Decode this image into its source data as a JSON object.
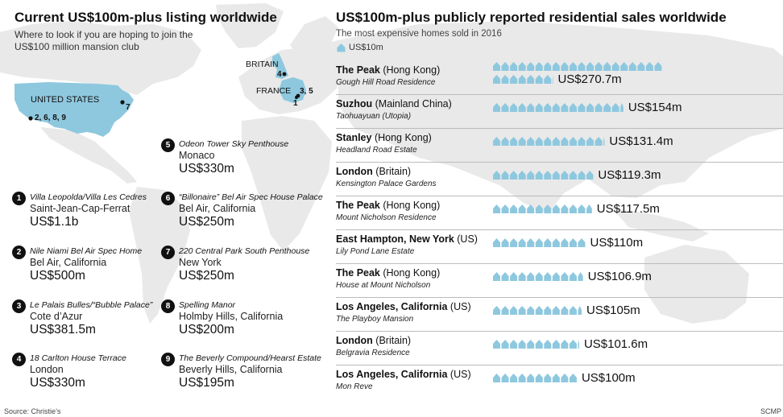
{
  "left": {
    "title": "Current US$100m-plus listing worldwide",
    "subtitle_line1": "Where to look if you are hoping to join the",
    "subtitle_line2": "US$100 million mansion club",
    "map": {
      "labels": {
        "us": "UNITED STATES",
        "britain": "BRITAIN",
        "france": "FRANCE"
      },
      "markers": {
        "la": "2, 6, 8, 9",
        "ny": "7",
        "london": "4",
        "monaco": "3, 5",
        "capferrat": "1"
      }
    },
    "listings": [
      {
        "num": "1",
        "name": "Villa Leopolda/Villa Les Cedres",
        "location": "Saint-Jean-Cap-Ferrat",
        "price": "US$1.1b"
      },
      {
        "num": "2",
        "name": "Nile Niami Bel Air Spec Home",
        "location": "Bel Air, California",
        "price": "US$500m"
      },
      {
        "num": "3",
        "name": "Le Palais Bulles/“Bubble Palace”",
        "location": "Cote d’Azur",
        "price": "US$381.5m"
      },
      {
        "num": "4",
        "name": "18 Carlton House Terrace",
        "location": "London",
        "price": "US$330m"
      },
      {
        "num": "5",
        "name": "Odeon Tower Sky Penthouse",
        "location": "Monaco",
        "price": "US$330m"
      },
      {
        "num": "6",
        "name": "“Billonaire” Bel Air Spec House Palace",
        "location": "Bel Air, California",
        "price": "US$250m"
      },
      {
        "num": "7",
        "name": "220 Central Park South Penthouse",
        "location": "New York",
        "price": "US$250m"
      },
      {
        "num": "8",
        "name": "Spelling Manor",
        "location": "Holmby Hills, California",
        "price": "US$200m"
      },
      {
        "num": "9",
        "name": "The Beverly Compound/Hearst Estate",
        "location": "Beverly Hills, California",
        "price": "US$195m"
      }
    ]
  },
  "right": {
    "title": "US$100m-plus publicly reported residential sales worldwide",
    "subtitle": "The most expensive homes sold in 2016",
    "legend_label": "US$10m"
  },
  "chart_data": {
    "type": "bar",
    "unit_icon_value": 10,
    "icon_color": "#8ec8df",
    "sales": [
      {
        "city": "The Peak",
        "region": "(Hong Kong)",
        "name": "Gough Hill Road Residence",
        "value": 270.7,
        "label": "US$270.7m"
      },
      {
        "city": "Suzhou",
        "region": "(Mainland China)",
        "name": "Taohuayuan (Utopia)",
        "value": 154,
        "label": "US$154m"
      },
      {
        "city": "Stanley",
        "region": "(Hong Kong)",
        "name": "Headland Road Estate",
        "value": 131.4,
        "label": "US$131.4m"
      },
      {
        "city": "London",
        "region": "(Britain)",
        "name": "Kensington Palace Gardens",
        "value": 119.3,
        "label": "US$119.3m"
      },
      {
        "city": "The Peak",
        "region": "(Hong Kong)",
        "name": "Mount Nicholson Residence",
        "value": 117.5,
        "label": "US$117.5m"
      },
      {
        "city": "East Hampton, New York",
        "region": "(US)",
        "name": "Lily Pond Lane Estate",
        "value": 110,
        "label": "US$110m"
      },
      {
        "city": "The Peak",
        "region": "(Hong Kong)",
        "name": "House at Mount Nicholson",
        "value": 106.9,
        "label": "US$106.9m"
      },
      {
        "city": "Los Angeles, California",
        "region": "(US)",
        "name": "The Playboy Mansion",
        "value": 105,
        "label": "US$105m"
      },
      {
        "city": "London",
        "region": "(Britain)",
        "name": "Belgravia Residence",
        "value": 101.6,
        "label": "US$101.6m"
      },
      {
        "city": "Los Angeles, California",
        "region": "(US)",
        "name": "Mon Reve",
        "value": 100,
        "label": "US$100m"
      }
    ]
  },
  "footer": {
    "source": "Source: Christie’s",
    "credit": "SCMP"
  }
}
